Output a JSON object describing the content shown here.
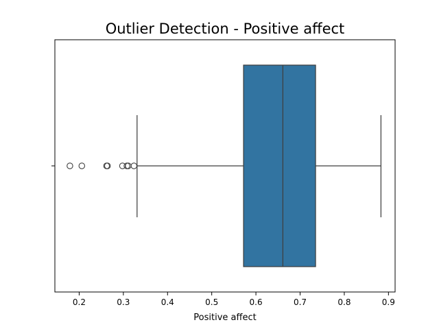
{
  "chart_data": {
    "type": "box",
    "title": "Outlier Detection - Positive affect",
    "xlabel": "Positive affect",
    "ylabel": "",
    "orientation": "horizontal",
    "xlim": [
      0.145,
      0.915
    ],
    "x_ticks": [
      0.2,
      0.3,
      0.4,
      0.5,
      0.6,
      0.7,
      0.8,
      0.9
    ],
    "x_tick_labels": [
      "0.2",
      "0.3",
      "0.4",
      "0.5",
      "0.6",
      "0.7",
      "0.8",
      "0.9"
    ],
    "grid": false,
    "legend": "none",
    "box": {
      "whisker_low": 0.331,
      "q1": 0.572,
      "median": 0.661,
      "q3": 0.735,
      "whisker_high": 0.883
    },
    "outliers": [
      0.179,
      0.206,
      0.262,
      0.264,
      0.298,
      0.308,
      0.311,
      0.324
    ],
    "colors": {
      "box_fill": "#3274a1",
      "line": "#3f3f3f",
      "axis": "#000000",
      "outlier_edge": "#3f3f3f"
    }
  }
}
